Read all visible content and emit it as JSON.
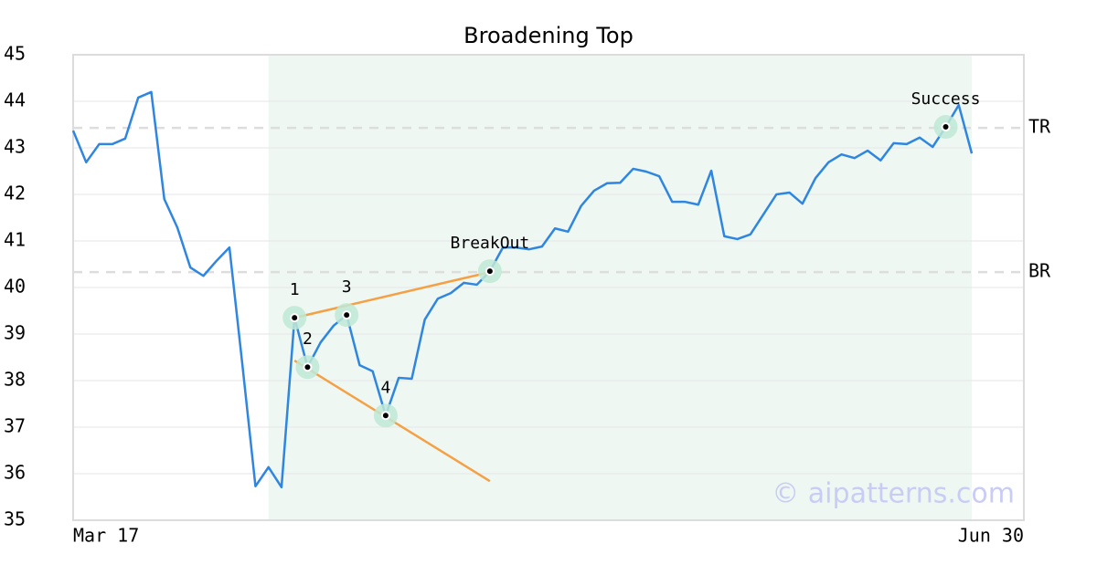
{
  "chart_data": {
    "type": "line",
    "title": "Broadening Top",
    "x": [
      0,
      1,
      2,
      3,
      4,
      5,
      6,
      7,
      8,
      9,
      10,
      11,
      12,
      13,
      14,
      15,
      16,
      17,
      18,
      19,
      20,
      21,
      22,
      23,
      24,
      25,
      26,
      27,
      28,
      29,
      30,
      31,
      32,
      33,
      34,
      35,
      36,
      37,
      38,
      39,
      40,
      41,
      42,
      43,
      44,
      45,
      46,
      47,
      48,
      49,
      50,
      51,
      52,
      53,
      54,
      55,
      56,
      57,
      58,
      59,
      60,
      61,
      62,
      63,
      64,
      65,
      66,
      67,
      68,
      69
    ],
    "xlim": [
      0,
      73
    ],
    "xticks": [
      {
        "value": 0,
        "label": "Mar 17"
      },
      {
        "value": 73,
        "label": "Jun 30"
      }
    ],
    "ylim": [
      35,
      45
    ],
    "yticks": [
      35,
      36,
      37,
      38,
      39,
      40,
      41,
      42,
      43,
      44,
      45
    ],
    "grid": true,
    "series": [
      {
        "color": "#2f86e0",
        "values": [
          43.37,
          42.69,
          43.08,
          43.08,
          43.2,
          44.08,
          44.2,
          41.9,
          41.29,
          40.43,
          40.25,
          40.57,
          40.86,
          38.33,
          35.73,
          36.14,
          35.71,
          39.35,
          38.29,
          38.82,
          39.18,
          39.41,
          38.33,
          38.2,
          37.25,
          38.06,
          38.04,
          39.31,
          39.76,
          39.88,
          40.1,
          40.06,
          40.35,
          40.86,
          40.86,
          40.82,
          40.88,
          41.27,
          41.2,
          41.75,
          42.08,
          42.24,
          42.25,
          42.55,
          42.49,
          42.39,
          41.84,
          41.84,
          41.78,
          42.51,
          41.1,
          41.04,
          41.14,
          41.57,
          42.0,
          42.04,
          41.8,
          42.35,
          42.69,
          42.86,
          42.78,
          42.94,
          42.73,
          43.1,
          43.08,
          43.22,
          43.02,
          43.45,
          43.92,
          42.88
        ]
      }
    ],
    "highlight": {
      "x0": 15,
      "x1": 69,
      "color": "#eef7f2"
    },
    "levels": [
      {
        "label": "TR",
        "value": 43.43
      },
      {
        "label": "BR",
        "value": 40.33
      }
    ],
    "trendline_color": "#f5a044",
    "trendlines": [
      {
        "x": [
          17,
          32
        ],
        "y": [
          39.35,
          40.33
        ]
      },
      {
        "x": [
          17,
          32
        ],
        "y": [
          38.43,
          35.84
        ]
      }
    ],
    "marker_color": "#bfe9d6",
    "points": [
      {
        "label": "1",
        "x": 17,
        "y": 39.35
      },
      {
        "label": "2",
        "x": 18,
        "y": 38.29
      },
      {
        "label": "3",
        "x": 21,
        "y": 39.41
      },
      {
        "label": "4",
        "x": 24,
        "y": 37.25
      },
      {
        "label": "BreakOut",
        "x": 32,
        "y": 40.35
      },
      {
        "label": "Success",
        "x": 67,
        "y": 43.45
      }
    ],
    "watermark": "© aipatterns.com"
  }
}
